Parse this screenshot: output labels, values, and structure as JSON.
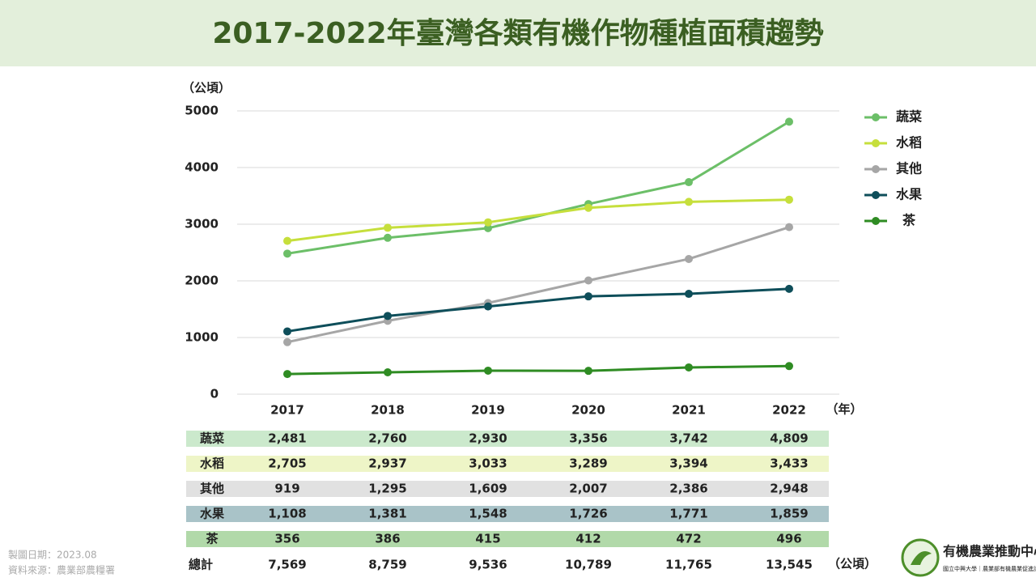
{
  "chart_data": {
    "type": "line",
    "title": "2017-2022年臺灣各類有機作物種植面積趨勢",
    "y_label": "（公頃）",
    "x_label": "（年）",
    "categories": [
      "2017",
      "2018",
      "2019",
      "2020",
      "2021",
      "2022"
    ],
    "ylim": [
      0,
      5000
    ],
    "yticks": [
      0,
      1000,
      2000,
      3000,
      4000,
      5000
    ],
    "grid": true,
    "legend": "right",
    "series": [
      {
        "name": "蔬菜",
        "color": "#6cbf68",
        "row_color": "#cbe9cc",
        "values": [
          2481,
          2760,
          2930,
          3356,
          3742,
          4809
        ],
        "value_labels": [
          "2,481",
          "2,760",
          "2,930",
          "3,356",
          "3,742",
          "4,809"
        ]
      },
      {
        "name": "水稻",
        "color": "#c6df3c",
        "row_color": "#eef5c7",
        "values": [
          2705,
          2937,
          3033,
          3289,
          3394,
          3433
        ],
        "value_labels": [
          "2,705",
          "2,937",
          "3,033",
          "3,289",
          "3,394",
          "3,433"
        ]
      },
      {
        "name": "其他",
        "color": "#a6a6a6",
        "row_color": "#e1e1e1",
        "values": [
          919,
          1295,
          1609,
          2007,
          2386,
          2948
        ],
        "value_labels": [
          "919",
          "1,295",
          "1,609",
          "2,007",
          "2,386",
          "2,948"
        ]
      },
      {
        "name": "水果",
        "color": "#0e4e5a",
        "row_color": "#a9c3c8",
        "values": [
          1108,
          1381,
          1548,
          1726,
          1771,
          1859
        ],
        "value_labels": [
          "1,108",
          "1,381",
          "1,548",
          "1,726",
          "1,771",
          "1,859"
        ]
      },
      {
        "name": "茶",
        "color": "#2f8c23",
        "row_color": "#b1d9a9",
        "values": [
          356,
          386,
          415,
          412,
          472,
          496
        ],
        "value_labels": [
          "356",
          "386",
          "415",
          "412",
          "472",
          "496"
        ]
      }
    ],
    "totals": {
      "label": "總計",
      "values": [
        "7,569",
        "8,759",
        "9,536",
        "10,789",
        "11,765",
        "13,545"
      ],
      "unit": "（公頃）"
    },
    "notes": [
      "製圖日期：2023.08",
      "資料來源：農業部農糧署"
    ],
    "logo": {
      "name": "有機農業推動中心",
      "subtitle": "國立中興大學｜農業部有機農業促進諮詢會"
    }
  }
}
